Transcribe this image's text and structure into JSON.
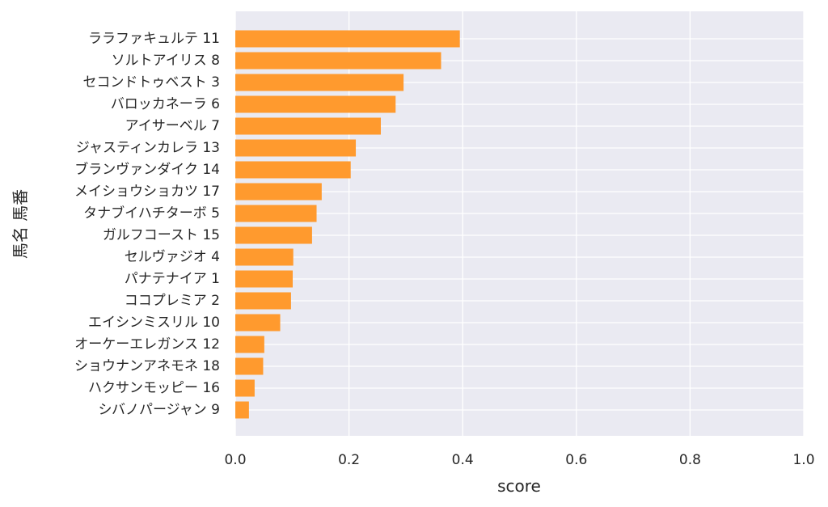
{
  "chart_data": {
    "type": "bar",
    "orientation": "horizontal",
    "title": "",
    "xlabel": "score",
    "ylabel": "馬名 馬番",
    "xlim": [
      0,
      1
    ],
    "xticks": [
      "0.0",
      "0.2",
      "0.4",
      "0.6",
      "0.8",
      "1.0"
    ],
    "xtick_values": [
      0,
      0.2,
      0.4,
      0.6,
      0.8,
      1.0
    ],
    "grid": true,
    "bar_color": "#ff9a2e",
    "background_color": "#eaeaf2",
    "categories": [
      "ララファキュルテ 11",
      "ソルトアイリス 8",
      "セコンドトゥベスト 3",
      "バロッカネーラ 6",
      "アイサーベル 7",
      "ジャスティンカレラ 13",
      "ブランヴァンダイク 14",
      "メイショウショカツ 17",
      "タナブイハチターボ 5",
      "ガルフコースト 15",
      "セルヴァジオ 4",
      "パナテナイア 1",
      "ココプレミア 2",
      "エイシンミスリル 10",
      "オーケーエレガンス 12",
      "ショウナンアネモネ 18",
      "ハクサンモッピー 16",
      "シバノパージャン 9"
    ],
    "values": [
      0.395,
      0.362,
      0.296,
      0.282,
      0.256,
      0.212,
      0.203,
      0.152,
      0.143,
      0.135,
      0.102,
      0.101,
      0.098,
      0.079,
      0.051,
      0.049,
      0.034,
      0.024
    ]
  }
}
